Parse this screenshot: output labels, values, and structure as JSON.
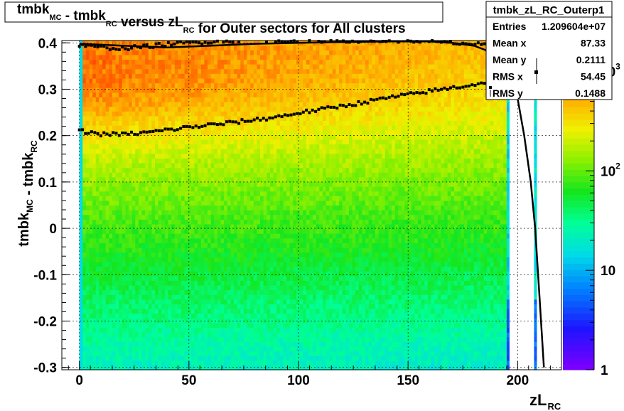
{
  "chart_data": {
    "type": "heatmap",
    "title": {
      "parts": [
        {
          "text": "tmbk",
          "sub": "MC"
        },
        {
          "text": " - tmbk",
          "sub": "RC"
        },
        {
          "text": " versus zL",
          "sub": "RC"
        },
        {
          "text": " for Outer sectors for All clusters",
          "sub": ""
        }
      ]
    },
    "xlabel": {
      "main": "zL",
      "sub": "RC"
    },
    "ylabel": {
      "parts": [
        {
          "text": "tmbk",
          "sub": "MC"
        },
        {
          "text": " - tmbk",
          "sub": "RC"
        }
      ]
    },
    "xlim": [
      -8,
      220
    ],
    "ylim": [
      -0.305,
      0.405
    ],
    "x_ticks": [
      0,
      50,
      100,
      150,
      200
    ],
    "x_tick_labels": [
      "0",
      "50",
      "100",
      "150",
      "200"
    ],
    "y_ticks": [
      -0.3,
      -0.2,
      -0.1,
      0,
      0.1,
      0.2,
      0.3,
      0.4
    ],
    "y_tick_labels": [
      "-0.3",
      "-0.2",
      "-0.1",
      "0",
      "0.1",
      "0.2",
      "0.3",
      "0.4"
    ],
    "grid": true,
    "z_scale": "log",
    "z_range": [
      1,
      1400
    ],
    "z_ticks": [
      1,
      10,
      100,
      1000
    ],
    "z_tick_labels": [
      {
        "base": "1",
        "exp": ""
      },
      {
        "base": "10",
        "exp": ""
      },
      {
        "base": "10",
        "exp": "2"
      },
      {
        "base": "10",
        "exp": "3"
      }
    ],
    "stats_box": {
      "name": "tmbk_zL_RC_Outerp1",
      "rows": [
        {
          "label": "Entries",
          "value": "1.209604e+07"
        },
        {
          "label": "Mean x",
          "value": "87.33"
        },
        {
          "label": "Mean y",
          "value": "0.2111"
        },
        {
          "label": "RMS x",
          "value": "54.45"
        },
        {
          "label": "RMS y",
          "value": "0.1488"
        }
      ]
    },
    "profile_series": [
      {
        "x": [
          0,
          10,
          20,
          30,
          40,
          50,
          60,
          70,
          80,
          90,
          100,
          110,
          120,
          130,
          140,
          150,
          160,
          170,
          180,
          190,
          195
        ],
        "y": [
          0.21,
          0.203,
          0.203,
          0.206,
          0.212,
          0.218,
          0.223,
          0.228,
          0.234,
          0.24,
          0.249,
          0.256,
          0.264,
          0.272,
          0.281,
          0.288,
          0.296,
          0.303,
          0.31,
          0.318,
          0.324
        ]
      },
      {
        "x": [
          0,
          10,
          20,
          30,
          40,
          50,
          60,
          70,
          80,
          90,
          100,
          110,
          120,
          130,
          140,
          150,
          160,
          170,
          180,
          190,
          195
        ],
        "y": [
          0.394,
          0.39,
          0.388,
          0.392,
          0.397,
          0.4,
          0.403,
          0.405,
          0.405,
          0.405,
          0.405,
          0.405,
          0.405,
          0.405,
          0.405,
          0.405,
          0.403,
          0.4,
          0.397,
          0.393,
          0.39
        ]
      }
    ],
    "fit_curve": {
      "x": [
        0,
        20,
        40,
        60,
        80,
        100,
        120,
        140,
        160,
        170,
        180,
        185,
        190,
        195,
        200,
        203,
        206,
        208,
        210,
        212
      ],
      "y": [
        0.398,
        0.394,
        0.39,
        0.394,
        0.398,
        0.4,
        0.402,
        0.403,
        0.403,
        0.4,
        0.394,
        0.385,
        0.37,
        0.35,
        0.28,
        0.2,
        0.1,
        0.0,
        -0.15,
        -0.3
      ]
    }
  }
}
